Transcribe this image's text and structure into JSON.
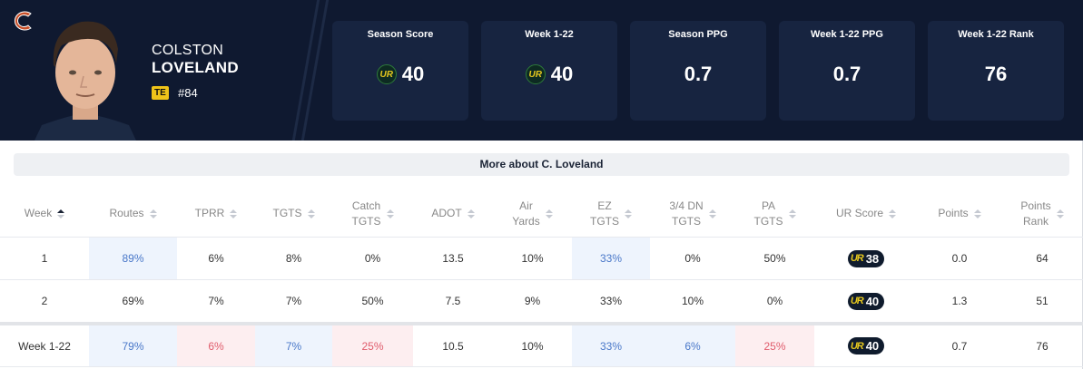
{
  "player": {
    "first_name": "COLSTON",
    "last_name": "LOVELAND",
    "position": "TE",
    "jersey": "#84",
    "team_logo": "chicago-bears-logo"
  },
  "stat_cards": [
    {
      "label": "Season Score",
      "value": "40",
      "has_ur_icon": true
    },
    {
      "label": "Week 1-22",
      "value": "40",
      "has_ur_icon": true
    },
    {
      "label": "Season PPG",
      "value": "0.7",
      "has_ur_icon": false
    },
    {
      "label": "Week 1-22 PPG",
      "value": "0.7",
      "has_ur_icon": false
    },
    {
      "label": "Week 1-22 Rank",
      "value": "76",
      "has_ur_icon": false
    }
  ],
  "ur_icon_text": "UR",
  "more_button": "More about C. Loveland",
  "table": {
    "headers": [
      {
        "line1": "Week",
        "line2": "",
        "sort": "asc"
      },
      {
        "line1": "Routes",
        "line2": "",
        "sort": "none"
      },
      {
        "line1": "TPRR",
        "line2": "",
        "sort": "none"
      },
      {
        "line1": "TGTS",
        "line2": "",
        "sort": "none"
      },
      {
        "line1": "Catch",
        "line2": "TGTS",
        "sort": "none"
      },
      {
        "line1": "ADOT",
        "line2": "",
        "sort": "none"
      },
      {
        "line1": "Air",
        "line2": "Yards",
        "sort": "none"
      },
      {
        "line1": "EZ",
        "line2": "TGTS",
        "sort": "none"
      },
      {
        "line1": "3/4 DN",
        "line2": "TGTS",
        "sort": "none"
      },
      {
        "line1": "PA",
        "line2": "TGTS",
        "sort": "none"
      },
      {
        "line1": "UR Score",
        "line2": "",
        "sort": "none"
      },
      {
        "line1": "Points",
        "line2": "",
        "sort": "none"
      },
      {
        "line1": "Points",
        "line2": "Rank",
        "sort": "none"
      }
    ],
    "rows": [
      {
        "week": "1",
        "routes": "89%",
        "tprr": "6%",
        "tgts": "8%",
        "catch_tgts": "0%",
        "adot": "13.5",
        "air_yards": "10%",
        "ez_tgts": "33%",
        "dn34_tgts": "0%",
        "pa_tgts": "50%",
        "ur_score": "38",
        "points": "0.0",
        "points_rank": "64"
      },
      {
        "week": "2",
        "routes": "69%",
        "tprr": "7%",
        "tgts": "7%",
        "catch_tgts": "50%",
        "adot": "7.5",
        "air_yards": "9%",
        "ez_tgts": "33%",
        "dn34_tgts": "10%",
        "pa_tgts": "0%",
        "ur_score": "40",
        "points": "1.3",
        "points_rank": "51"
      }
    ],
    "summary": {
      "week": "Week 1-22",
      "routes": "79%",
      "tprr": "6%",
      "tgts": "7%",
      "catch_tgts": "25%",
      "adot": "10.5",
      "air_yards": "10%",
      "ez_tgts": "33%",
      "dn34_tgts": "6%",
      "pa_tgts": "25%",
      "ur_score": "40",
      "points": "0.7",
      "points_rank": "76"
    }
  }
}
